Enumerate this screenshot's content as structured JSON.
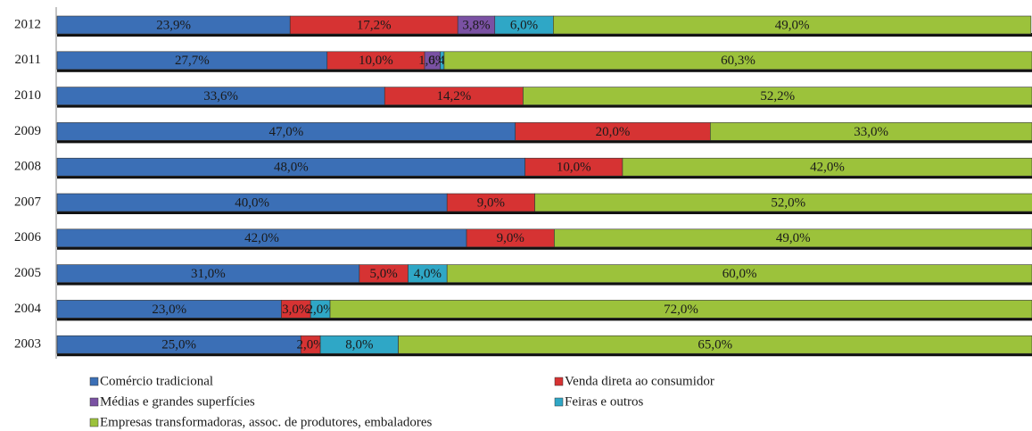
{
  "chart_data": {
    "type": "stacked_barh",
    "categories": [
      "2012",
      "2011",
      "2010",
      "2009",
      "2008",
      "2007",
      "2006",
      "2005",
      "2004",
      "2003"
    ],
    "series": [
      {
        "name": "Comércio tradicional",
        "color": "#3b6fb6",
        "values": [
          23.9,
          27.7,
          33.6,
          47.0,
          48.0,
          40.0,
          42.0,
          31.0,
          23.0,
          25.0
        ],
        "value_labels": [
          "23,9%",
          "27,7%",
          "33,6%",
          "47,0%",
          "48,0%",
          "40,0%",
          "42,0%",
          "31,0%",
          "23,0%",
          "25,0%"
        ]
      },
      {
        "name": "Venda direta ao consumidor",
        "color": "#d63333",
        "values": [
          17.2,
          10.0,
          14.2,
          20.0,
          10.0,
          9.0,
          9.0,
          5.0,
          3.0,
          2.0
        ],
        "value_labels": [
          "17,2%",
          "10,0%",
          "14,2%",
          "20,0%",
          "10,0%",
          "9,0%",
          "9,0%",
          "5,0%",
          "3,0%",
          "2,0%"
        ]
      },
      {
        "name": "Médias e grandes superfícies",
        "color": "#7a51a3",
        "values": [
          3.8,
          1.6,
          null,
          null,
          null,
          null,
          null,
          null,
          null,
          null
        ],
        "value_labels": [
          "3,8%",
          "1,6%",
          null,
          null,
          null,
          null,
          null,
          null,
          null,
          null
        ]
      },
      {
        "name": "Feiras e outros",
        "color": "#2fa7c6",
        "values": [
          6.0,
          0.4,
          null,
          null,
          null,
          null,
          null,
          4.0,
          2.0,
          8.0
        ],
        "value_labels": [
          "6,0%",
          "0,4%",
          null,
          null,
          null,
          null,
          null,
          "4,0%",
          "2,0%",
          "8,0%"
        ]
      },
      {
        "name": "Empresas transformadoras, assoc. de produtores, embaladores",
        "color": "#9cc23b",
        "values": [
          49.0,
          60.3,
          52.2,
          33.0,
          42.0,
          52.0,
          49.0,
          60.0,
          72.0,
          65.0
        ],
        "value_labels": [
          "49,0%",
          "60,3%",
          "52,2%",
          "33,0%",
          "42,0%",
          "52,0%",
          "49,0%",
          "60,0%",
          "72,0%",
          "65,0%"
        ]
      }
    ],
    "xlim": [
      0,
      100
    ]
  }
}
